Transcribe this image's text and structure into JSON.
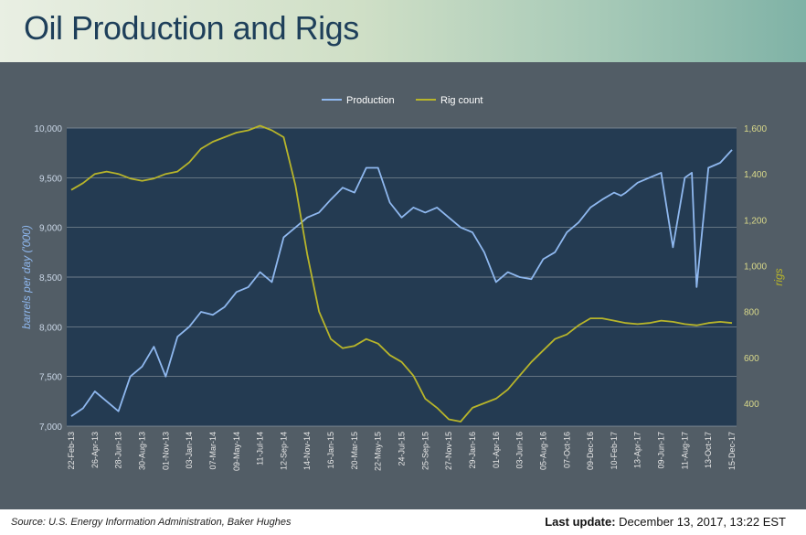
{
  "header": {
    "title": "Oil Production and Rigs"
  },
  "footer": {
    "source": "Source: U.S. Energy Information Administration, Baker Hughes",
    "update_label": "Last update:",
    "update_value": "December 13, 2017, 13:22 EST"
  },
  "colors": {
    "production": "#8fb8ef",
    "rigs": "#b8b52a",
    "plot_bg": "#243b52",
    "panel_bg": "#525d66"
  },
  "chart_data": {
    "type": "line",
    "legend": {
      "placement": "top-center",
      "entries": [
        "Production",
        "Rig count"
      ]
    },
    "ylabel": "barrels per day ('000)",
    "y2label": "rigs",
    "ylim": [
      7000,
      10000
    ],
    "y2lim": [
      300,
      1600
    ],
    "yticks": [
      "7,000",
      "7,500",
      "8,000",
      "8,500",
      "9,000",
      "9,500",
      "10,000"
    ],
    "y2ticks": [
      "400",
      "600",
      "800",
      "1,000",
      "1,200",
      "1,400",
      "1,600"
    ],
    "xticks": [
      "22-Feb-13",
      "26-Apr-13",
      "28-Jun-13",
      "30-Aug-13",
      "01-Nov-13",
      "03-Jan-14",
      "07-Mar-14",
      "09-May-14",
      "11-Jul-14",
      "12-Sep-14",
      "14-Nov-14",
      "16-Jan-15",
      "20-Mar-15",
      "22-May-15",
      "24-Jul-15",
      "25-Sep-15",
      "27-Nov-15",
      "29-Jan-16",
      "01-Apr-16",
      "03-Jun-16",
      "05-Aug-16",
      "07-Oct-16",
      "09-Dec-16",
      "10-Feb-17",
      "13-Apr-17",
      "09-Jun-17",
      "11-Aug-17",
      "13-Oct-17",
      "15-Dec-17"
    ],
    "grid": true,
    "series": [
      {
        "name": "Production",
        "axis": "left",
        "x": [
          0,
          0.5,
          1,
          1.5,
          2,
          2.5,
          3,
          3.5,
          4,
          4.5,
          5,
          5.5,
          6,
          6.5,
          7,
          7.5,
          8,
          8.5,
          9,
          9.5,
          10,
          10.5,
          11,
          11.5,
          12,
          12.5,
          13,
          13.5,
          14,
          14.5,
          15,
          15.5,
          16,
          16.5,
          17,
          17.5,
          18,
          18.5,
          19,
          19.5,
          20,
          20.5,
          21,
          21.5,
          22,
          22.5,
          23,
          23.3,
          23.5,
          24,
          24.5,
          25,
          25.5,
          26,
          26.3,
          26.5,
          27,
          27.5,
          28
        ],
        "values": [
          7100,
          7180,
          7350,
          7250,
          7150,
          7500,
          7600,
          7800,
          7500,
          7900,
          8000,
          8150,
          8120,
          8200,
          8350,
          8400,
          8550,
          8450,
          8900,
          9000,
          9100,
          9150,
          9280,
          9400,
          9350,
          9600,
          9600,
          9250,
          9100,
          9200,
          9150,
          9200,
          9100,
          9000,
          8950,
          8750,
          8450,
          8550,
          8500,
          8480,
          8680,
          8750,
          8950,
          9050,
          9200,
          9280,
          9350,
          9320,
          9350,
          9450,
          9500,
          9550,
          8800,
          9500,
          9550,
          8400,
          9600,
          9650,
          9780
        ]
      },
      {
        "name": "Rig count",
        "axis": "right",
        "x": [
          0,
          0.5,
          1,
          1.5,
          2,
          2.5,
          3,
          3.5,
          4,
          4.5,
          5,
          5.5,
          6,
          6.5,
          7,
          7.5,
          8,
          8.5,
          9,
          9.5,
          10,
          10.5,
          11,
          11.5,
          12,
          12.5,
          13,
          13.5,
          14,
          14.5,
          15,
          15.5,
          16,
          16.5,
          17,
          17.5,
          18,
          18.5,
          19,
          19.5,
          20,
          20.5,
          21,
          21.5,
          22,
          22.5,
          23,
          23.5,
          24,
          24.5,
          25,
          25.5,
          26,
          26.5,
          27,
          27.5,
          28
        ],
        "values": [
          1330,
          1360,
          1400,
          1410,
          1400,
          1380,
          1370,
          1380,
          1400,
          1410,
          1450,
          1510,
          1540,
          1560,
          1580,
          1590,
          1610,
          1590,
          1560,
          1350,
          1050,
          800,
          680,
          640,
          650,
          680,
          660,
          610,
          580,
          520,
          420,
          380,
          330,
          320,
          380,
          400,
          420,
          460,
          520,
          580,
          630,
          680,
          700,
          740,
          770,
          770,
          760,
          750,
          745,
          750,
          760,
          755,
          745,
          740,
          750,
          755,
          750
        ]
      }
    ]
  }
}
